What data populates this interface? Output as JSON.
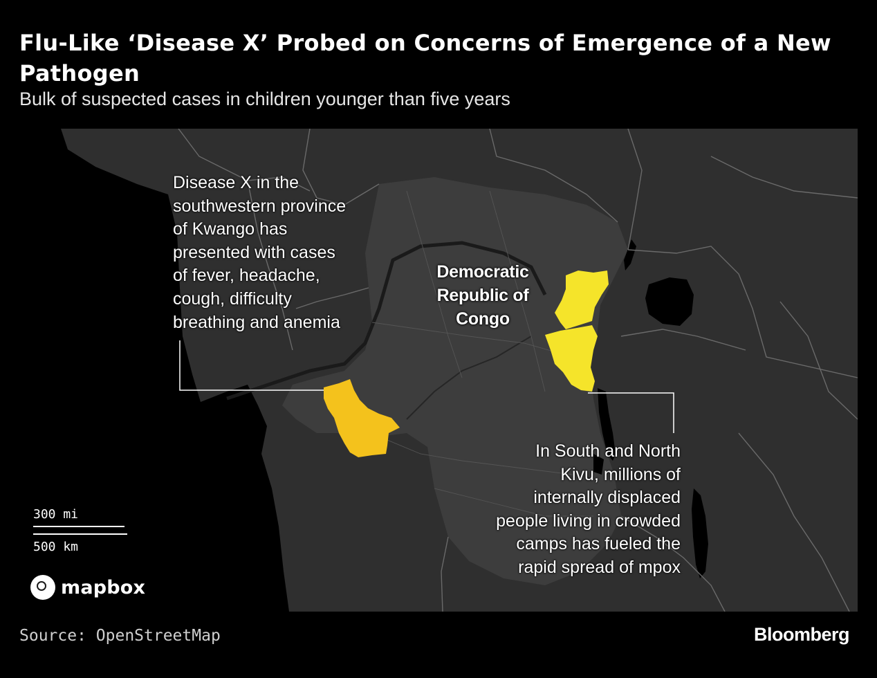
{
  "header": {
    "title": "Flu-Like ‘Disease X’ Probed on Concerns of Emergence of a New Pathogen",
    "subtitle": "Bulk of suspected cases in children younger than five years"
  },
  "map": {
    "country_label": "Democratic\nRepublic of\nCongo",
    "annotation_left": "Disease X in the\nsouthwestern province\nof Kwango has\npresented with cases\nof fever, headache,\ncough, difficulty\nbreathing and anemia",
    "annotation_right": "In South and North\nKivu, millions of\ninternally displaced\npeople living in crowded\ncamps has fueled the\nrapid spread of mpox",
    "highlight_colors": {
      "kwango": "#f4c21c",
      "kivu": "#f5e42a"
    },
    "scale": {
      "miles": "300 mi",
      "km": "500 km"
    },
    "attribution_logo": "mapbox"
  },
  "footer": {
    "source": "Source: OpenStreetMap",
    "brand": "Bloomberg"
  }
}
